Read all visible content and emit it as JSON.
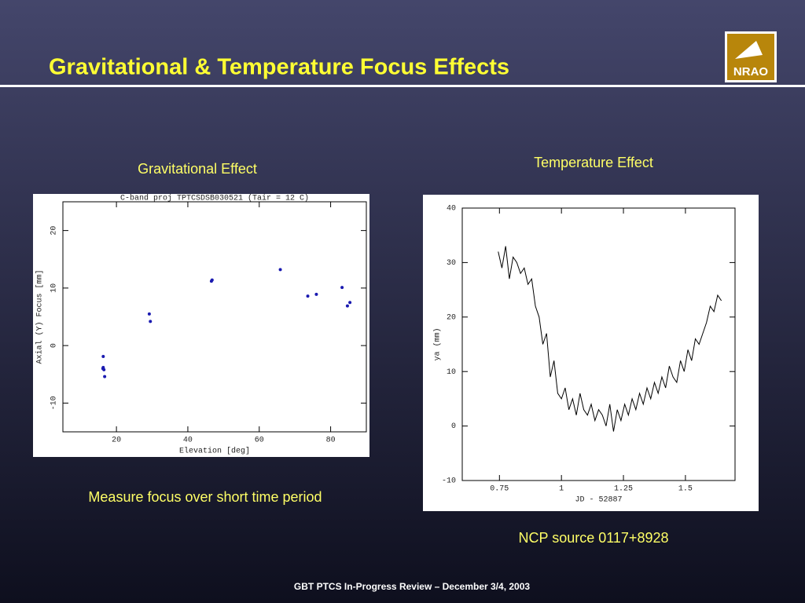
{
  "slide": {
    "title": "Gravitational & Temperature  Focus Effects",
    "logo_text": "NRAO",
    "left_caption": "Gravitational Effect",
    "right_caption": "Temperature Effect",
    "left_note": "Measure focus over short  time period",
    "right_note": "NCP source 0117+8928",
    "footer": "GBT PTCS In-Progress  Review – December 3/4, 2003"
  },
  "chart_data": [
    {
      "type": "scatter",
      "title": "C-band  proj TPTCSDSB030521 (Tair = 12 C)",
      "x_label": "Elevation [deg]",
      "y_label": "Axial (Y) Focus [mm]",
      "x": [
        16.3,
        16.3,
        16.5,
        16.2,
        16.7,
        29.2,
        29.5,
        46.6,
        46.8,
        65.9,
        73.6,
        76,
        83.2,
        84.7,
        85.4
      ],
      "values": [
        -1.9,
        -3.8,
        -4.2,
        -4,
        -5.4,
        5.5,
        4.2,
        11.2,
        11.4,
        13.2,
        8.6,
        8.9,
        10.1,
        6.9,
        7.5
      ],
      "color": "#1a1ab0",
      "xlim": [
        5,
        90
      ],
      "xticks": [
        20,
        40,
        60,
        80
      ],
      "ylim": [
        -15,
        25
      ],
      "yticks": [
        -10,
        0,
        10,
        20
      ],
      "grid": false
    },
    {
      "type": "line",
      "x_label": "JD - 52887",
      "y_label": "ya (mm)",
      "x": [
        0.745,
        0.76,
        0.775,
        0.79,
        0.805,
        0.82,
        0.835,
        0.85,
        0.865,
        0.88,
        0.895,
        0.91,
        0.925,
        0.94,
        0.955,
        0.97,
        0.985,
        1.0,
        1.015,
        1.03,
        1.045,
        1.06,
        1.075,
        1.09,
        1.105,
        1.12,
        1.135,
        1.15,
        1.165,
        1.18,
        1.195,
        1.21,
        1.225,
        1.24,
        1.255,
        1.27,
        1.285,
        1.3,
        1.315,
        1.33,
        1.345,
        1.36,
        1.375,
        1.39,
        1.405,
        1.42,
        1.435,
        1.45,
        1.465,
        1.48,
        1.495,
        1.51,
        1.525,
        1.54,
        1.555,
        1.57,
        1.585,
        1.6,
        1.615,
        1.63,
        1.645
      ],
      "values": [
        32,
        29,
        33,
        27,
        31,
        30,
        28,
        29,
        26,
        27,
        22,
        20,
        15,
        17,
        9,
        12,
        6,
        5,
        7,
        3,
        5,
        2,
        6,
        3,
        2,
        4,
        1,
        3,
        2,
        0,
        4,
        -1,
        3,
        1,
        4,
        2,
        5,
        3,
        6,
        4,
        7,
        5,
        8,
        6,
        9,
        7,
        11,
        9,
        8,
        12,
        10,
        14,
        12,
        16,
        15,
        17,
        19,
        22,
        21,
        24,
        23
      ],
      "color": "#000000",
      "xlim": [
        0.6,
        1.7
      ],
      "xticks": [
        0.75,
        1,
        1.25,
        1.5
      ],
      "ylim": [
        -10,
        40
      ],
      "yticks": [
        -10,
        0,
        10,
        20,
        30,
        40
      ],
      "grid": false
    }
  ]
}
